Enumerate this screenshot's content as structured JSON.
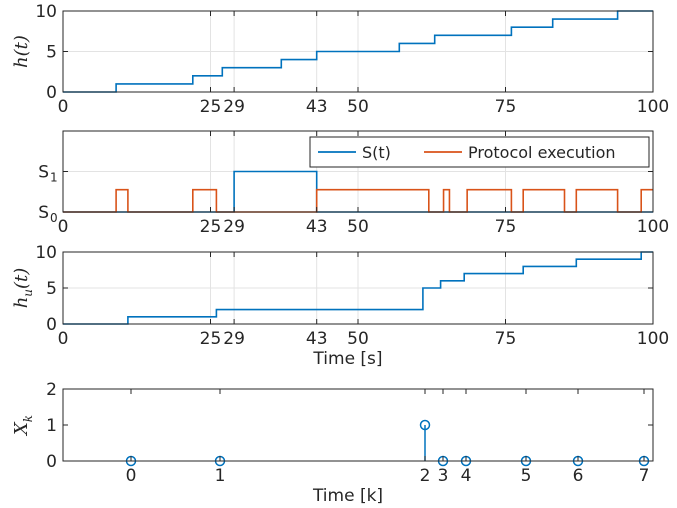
{
  "chart_data": [
    {
      "type": "line",
      "step": true,
      "ylabel_main": "h",
      "ylabel_sub": "",
      "ylabel_arg": "(t)",
      "xlabel": "",
      "xlim": [
        0,
        100
      ],
      "ylim": [
        0,
        10
      ],
      "xticks": [
        0,
        25,
        29,
        43,
        50,
        75,
        100
      ],
      "yticks": [
        0,
        5,
        10
      ],
      "grid": true,
      "series": [
        {
          "color": "#0072BD",
          "x": [
            0,
            9,
            9,
            22,
            22,
            27,
            27,
            37,
            37,
            43,
            43,
            57,
            57,
            63,
            63,
            76,
            76,
            83,
            83,
            94,
            94,
            100
          ],
          "y": [
            0,
            0,
            1,
            1,
            2,
            2,
            3,
            3,
            4,
            4,
            5,
            5,
            6,
            6,
            7,
            7,
            8,
            8,
            9,
            9,
            10,
            10
          ]
        }
      ]
    },
    {
      "type": "line",
      "step": true,
      "xlabel": "",
      "xlim": [
        0,
        100
      ],
      "ylim": [
        0,
        2
      ],
      "xticks": [
        0,
        25,
        29,
        43,
        50,
        75,
        100
      ],
      "yticks": [
        {
          "value": 0,
          "main": "S",
          "sub": "0"
        },
        {
          "value": 1,
          "main": "S",
          "sub": "1"
        }
      ],
      "grid": true,
      "legend_position": "top-right",
      "series": [
        {
          "name": "S(t)",
          "color": "#0072BD",
          "x": [
            0,
            29,
            29,
            43,
            43,
            100
          ],
          "y": [
            0,
            0,
            1,
            1,
            0,
            0
          ]
        },
        {
          "name": "Protocol execution",
          "color": "#D95319",
          "x": [
            0,
            9,
            9,
            11,
            11,
            22,
            22,
            26,
            26,
            43,
            43,
            62,
            62,
            64.5,
            64.5,
            65.5,
            65.5,
            68.5,
            68.5,
            76,
            76,
            78,
            78,
            85,
            85,
            87,
            87,
            94,
            94,
            98,
            98,
            100
          ],
          "y": [
            0,
            0,
            0.55,
            0.55,
            0,
            0,
            0.55,
            0.55,
            0,
            0,
            0.55,
            0.55,
            0,
            0,
            0.55,
            0.55,
            0,
            0,
            0.55,
            0.55,
            0,
            0,
            0.55,
            0.55,
            0,
            0,
            0.55,
            0.55,
            0,
            0,
            0.55,
            0.55
          ]
        }
      ]
    },
    {
      "type": "line",
      "step": true,
      "ylabel_main": "h",
      "ylabel_sub": "u",
      "ylabel_arg": "(t)",
      "xlabel": "Time [s]",
      "xlim": [
        0,
        100
      ],
      "ylim": [
        0,
        10
      ],
      "xticks": [
        0,
        25,
        29,
        43,
        50,
        75,
        100
      ],
      "yticks": [
        0,
        5,
        10
      ],
      "grid": true,
      "series": [
        {
          "color": "#0072BD",
          "x": [
            0,
            11,
            11,
            26,
            26,
            61,
            61,
            64,
            64,
            68,
            68,
            78,
            78,
            87,
            87,
            98,
            98,
            100
          ],
          "y": [
            0,
            0,
            1,
            1,
            2,
            2,
            5,
            5,
            6,
            6,
            7,
            7,
            8,
            8,
            9,
            9,
            10,
            10
          ]
        }
      ]
    },
    {
      "type": "scatter",
      "stem": true,
      "ylabel_main": "X",
      "ylabel_sub": "k",
      "ylabel_arg": "",
      "xlabel": "Time [k]",
      "ylim": [
        0,
        2
      ],
      "yticks": [
        0,
        1,
        2
      ],
      "grid": false,
      "series": [
        {
          "color": "#0072BD",
          "x": [
            0,
            1,
            2,
            3,
            4,
            5,
            6,
            7
          ],
          "y": [
            0,
            0,
            1,
            0,
            0,
            0,
            0,
            0
          ]
        }
      ]
    }
  ]
}
